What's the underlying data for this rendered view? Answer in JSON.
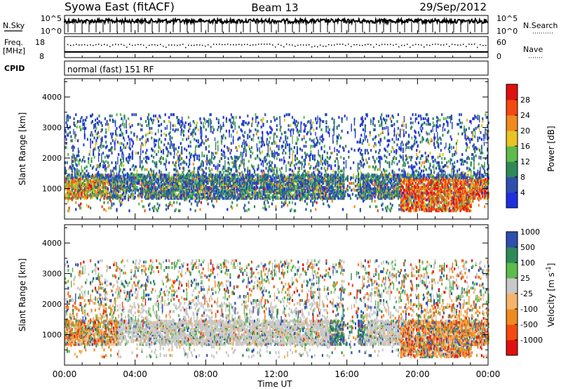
{
  "header": {
    "station": "Syowa East (fitACF)",
    "beam": "Beam 13",
    "date": "29/Sep/2012"
  },
  "noise_panel": {
    "left_label": "N.Sky",
    "right_label": "N.Search",
    "top_tick": "10^5",
    "bottom_tick": "10^0",
    "right_top_tick": "10^5",
    "right_bottom_tick": "10^0"
  },
  "freq_panel": {
    "label_line1": "Freq.",
    "label_line2": "[MHz]",
    "left_ticks": [
      "18",
      "8"
    ],
    "right_label": "Nave",
    "right_ticks": [
      "60",
      "0"
    ]
  },
  "cpid": {
    "label": "CPID",
    "value": "normal (fast) 151 RF"
  },
  "colors": {
    "power_scale": [
      "#1f2fe0",
      "#2e4fb0",
      "#2e8b57",
      "#5dbb4d",
      "#e8c422",
      "#f08a1e",
      "#f24a10",
      "#e01010"
    ],
    "velocity_scale": [
      "#e01010",
      "#f24a10",
      "#f08a1e",
      "#f5b46a",
      "#c8c8c8",
      "#5dbb4d",
      "#2e8b57",
      "#2e4fb0"
    ]
  },
  "chart_data": [
    {
      "type": "heatmap",
      "name": "power",
      "ylabel": "Slant Range [km]",
      "yticks": [
        "1000",
        "2000",
        "3000",
        "4000"
      ],
      "ylim": [
        0,
        4600
      ],
      "xlim": [
        0,
        24
      ],
      "colorbar_label": "Power [dB]",
      "colorbar_ticks": [
        "4",
        "8",
        "12",
        "16",
        "20",
        "24",
        "28"
      ],
      "colorbar_range": [
        0,
        32
      ]
    },
    {
      "type": "heatmap",
      "name": "velocity",
      "ylabel": "Slant Range [km]",
      "yticks": [
        "1000",
        "2000",
        "3000",
        "4000"
      ],
      "ylim": [
        0,
        4600
      ],
      "xlim": [
        0,
        24
      ],
      "colorbar_label": "Velocity [m s^-1]",
      "colorbar_ticks": [
        "-1000",
        "-500",
        "-100",
        "-25",
        "25",
        "100",
        "500",
        "1000"
      ]
    }
  ],
  "xaxis": {
    "ticks": [
      "00:00",
      "04:00",
      "08:00",
      "12:00",
      "16:00",
      "20:00",
      "00:00"
    ],
    "label": "Time UT"
  }
}
